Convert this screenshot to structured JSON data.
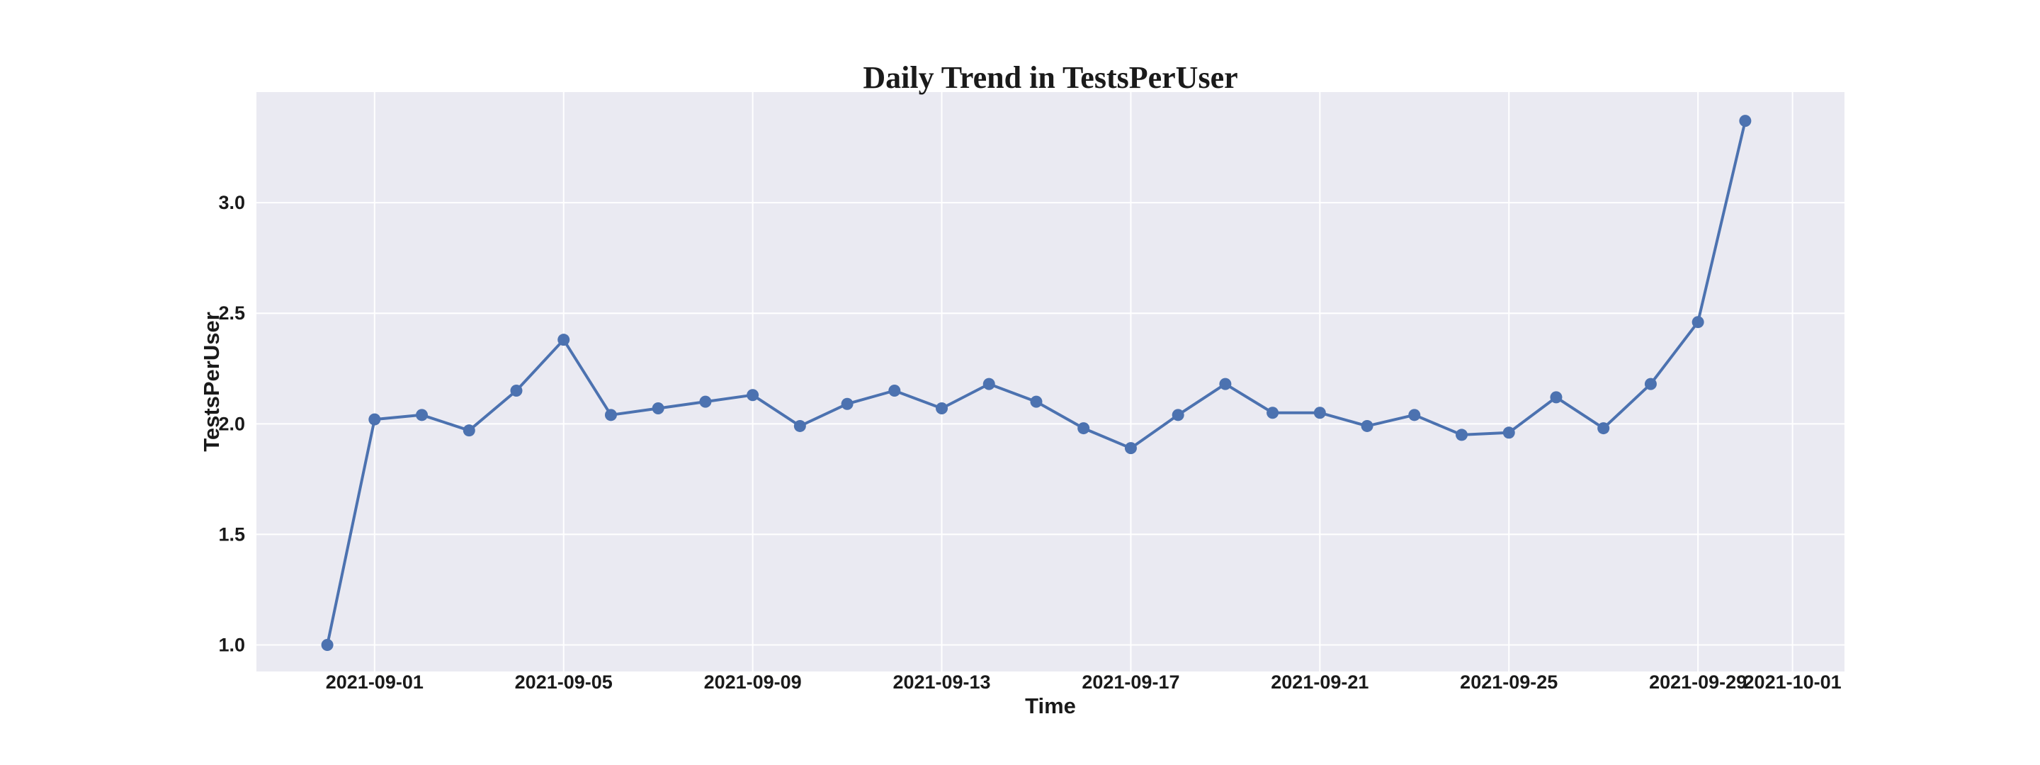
{
  "chart_data": {
    "type": "line",
    "title": "Daily Trend in TestsPerUser",
    "xlabel": "Time",
    "ylabel": "TestsPerUser",
    "x": [
      "2021-08-31",
      "2021-09-01",
      "2021-09-02",
      "2021-09-03",
      "2021-09-04",
      "2021-09-05",
      "2021-09-06",
      "2021-09-07",
      "2021-09-08",
      "2021-09-09",
      "2021-09-10",
      "2021-09-11",
      "2021-09-12",
      "2021-09-13",
      "2021-09-14",
      "2021-09-15",
      "2021-09-16",
      "2021-09-17",
      "2021-09-18",
      "2021-09-19",
      "2021-09-20",
      "2021-09-21",
      "2021-09-22",
      "2021-09-23",
      "2021-09-24",
      "2021-09-25",
      "2021-09-26",
      "2021-09-27",
      "2021-09-28",
      "2021-09-29",
      "2021-09-30"
    ],
    "series": [
      {
        "values": [
          1.0,
          2.02,
          2.04,
          1.97,
          2.15,
          2.38,
          2.04,
          2.07,
          2.1,
          2.13,
          1.99,
          2.09,
          2.15,
          2.07,
          2.18,
          2.1,
          1.98,
          1.89,
          2.04,
          2.18,
          2.05,
          2.05,
          1.99,
          2.04,
          1.95,
          1.96,
          2.12,
          1.98,
          2.18,
          2.46,
          3.37
        ],
        "color": "#4c72b0"
      }
    ],
    "xlim": [
      "2021-08-29.5",
      "2021-10-02.1"
    ],
    "ylim": [
      0.88,
      3.5
    ],
    "x_ticks": [
      "2021-09-01",
      "2021-09-05",
      "2021-09-09",
      "2021-09-13",
      "2021-09-17",
      "2021-09-21",
      "2021-09-25",
      "2021-09-29",
      "2021-10-01"
    ],
    "y_ticks": [
      1.0,
      1.5,
      2.0,
      2.5,
      3.0
    ],
    "y_tick_labels": [
      "1.0",
      "1.5",
      "2.0",
      "2.5",
      "3.0"
    ],
    "grid": true,
    "plot_background": "#eaeaf2",
    "grid_color": "#ffffff"
  }
}
